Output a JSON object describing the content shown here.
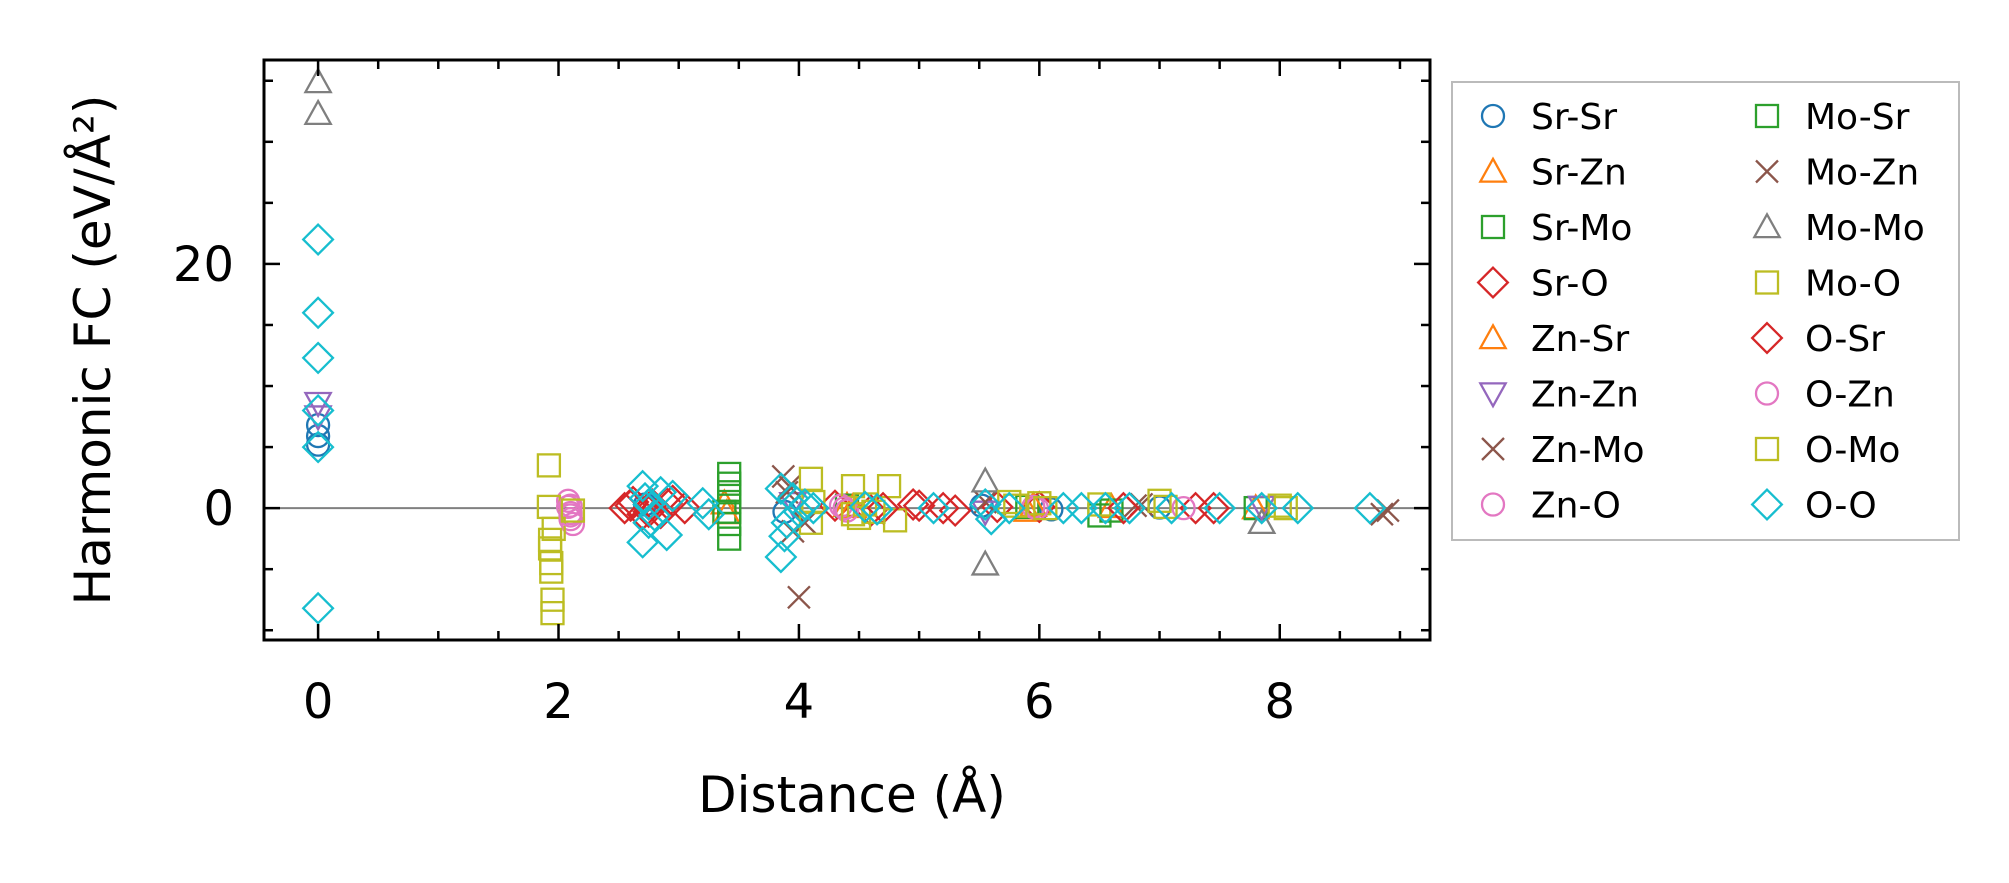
{
  "chart_data": {
    "type": "scatter",
    "xlabel": "Distance (Å)",
    "ylabel": "Harmonic FC (eV/Å²)",
    "xlim": [
      -0.45,
      9.25
    ],
    "ylim": [
      -10.8,
      36.7
    ],
    "xticks": [
      0,
      2,
      4,
      6,
      8
    ],
    "yticks": [
      0,
      20
    ],
    "grid": false,
    "zero_line": true,
    "legend_position": "outside-right",
    "colors": {
      "blue": "#1f77b4",
      "orange": "#ff7f0e",
      "green": "#2ca02c",
      "red": "#d62728",
      "purple": "#9467bd",
      "brown": "#8c564b",
      "pink": "#e377c2",
      "gray": "#7f7f7f",
      "olive": "#bcbd22",
      "cyan": "#17becf"
    },
    "series": [
      {
        "name": "Sr-Sr",
        "marker": "circle",
        "color": "#1f77b4",
        "x": [
          0,
          0,
          0,
          2.72,
          3.88,
          5.52,
          6.1,
          7.0
        ],
        "y": [
          6.8,
          5.9,
          5.2,
          0.3,
          -0.3,
          0.2,
          -0.1,
          0.05
        ]
      },
      {
        "name": "Sr-Zn",
        "marker": "triangle-up",
        "color": "#ff7f0e",
        "x": [
          3.38,
          4.4,
          5.9,
          6.6,
          7.8
        ],
        "y": [
          0.4,
          0.2,
          -0.2,
          0.1,
          0
        ]
      },
      {
        "name": "Sr-Mo",
        "marker": "square",
        "color": "#2ca02c",
        "x": [
          3.38,
          4.4,
          5.9,
          6.6,
          7.8
        ],
        "y": [
          -0.3,
          0.2,
          0.1,
          -0.2,
          0
        ]
      },
      {
        "name": "Sr-O",
        "marker": "diamond",
        "color": "#d62728",
        "x": [
          2.55,
          2.62,
          2.7,
          2.78,
          2.85,
          2.95,
          3.05,
          4.3,
          4.6,
          4.95,
          5.2,
          5.65,
          6.0,
          7.3
        ],
        "y": [
          0,
          0.5,
          -0.5,
          0.3,
          -0.4,
          0.6,
          0,
          0.2,
          -0.2,
          0.3,
          0,
          0.1,
          0.1,
          0
        ]
      },
      {
        "name": "Zn-Sr",
        "marker": "triangle-up",
        "color": "#ff7f0e",
        "x": [
          3.4,
          4.45,
          5.95
        ],
        "y": [
          -0.4,
          0.1,
          0.2
        ]
      },
      {
        "name": "Zn-Zn",
        "marker": "triangle-down",
        "color": "#9467bd",
        "x": [
          0,
          0,
          3.95,
          5.55,
          7.85
        ],
        "y": [
          8.6,
          7.5,
          0.4,
          -0.3,
          0.1
        ]
      },
      {
        "name": "Zn-Mo",
        "marker": "x",
        "color": "#8c564b",
        "x": [
          3.87,
          3.92,
          3.95,
          4.0,
          5.55,
          6.85,
          8.85
        ],
        "y": [
          2.6,
          1.8,
          -1.9,
          -7.3,
          0.5,
          0.3,
          -0.5
        ]
      },
      {
        "name": "Zn-O",
        "marker": "circle",
        "color": "#e377c2",
        "x": [
          2.08,
          2.08,
          2.1,
          2.1,
          2.12,
          4.35,
          4.4,
          5.95,
          7.2
        ],
        "y": [
          0.6,
          0.1,
          -0.4,
          -0.9,
          -1.3,
          0.2,
          -0.2,
          0.1,
          0
        ]
      },
      {
        "name": "Mo-Sr",
        "marker": "square",
        "color": "#2ca02c",
        "x": [
          3.42,
          3.42,
          3.42,
          3.42,
          3.42,
          3.42,
          3.42,
          6.5
        ],
        "y": [
          2.8,
          2.0,
          1.3,
          0.5,
          -0.3,
          -1.3,
          -2.5,
          -0.6
        ]
      },
      {
        "name": "Mo-Zn",
        "marker": "x",
        "color": "#8c564b",
        "x": [
          3.9,
          4.05,
          6.8,
          8.9
        ],
        "y": [
          1.3,
          -1.2,
          0.2,
          -0.2
        ]
      },
      {
        "name": "Mo-Mo",
        "marker": "triangle-up",
        "color": "#7f7f7f",
        "x": [
          0,
          0,
          5.55,
          5.55,
          7.85
        ],
        "y": [
          34.9,
          32.3,
          2.2,
          -4.6,
          -1.2
        ]
      },
      {
        "name": "Mo-O",
        "marker": "square",
        "color": "#bcbd22",
        "x": [
          1.92,
          1.92,
          1.93,
          1.93,
          1.94,
          1.94,
          1.95,
          1.95,
          1.96,
          4.1,
          4.1,
          4.45,
          4.5,
          4.75,
          4.8,
          5.75,
          6.0,
          6.5,
          7.0,
          8.0
        ],
        "y": [
          3.5,
          0.1,
          -2.6,
          -3.3,
          -4.5,
          -5.2,
          -7.5,
          -8.6,
          -1.7,
          2.4,
          -1.2,
          1.8,
          -0.8,
          1.8,
          -1.0,
          0.5,
          0.4,
          0.3,
          0.6,
          0.2
        ]
      },
      {
        "name": "O-Sr",
        "marker": "diamond",
        "color": "#d62728",
        "x": [
          2.6,
          2.75,
          2.9,
          4.7,
          5.0,
          5.3,
          6.7,
          7.45
        ],
        "y": [
          0.2,
          -0.3,
          0.4,
          0,
          0.2,
          -0.2,
          0,
          0
        ]
      },
      {
        "name": "O-Zn",
        "marker": "circle",
        "color": "#e377c2",
        "x": [
          2.1,
          2.1,
          4.38,
          5.98
        ],
        "y": [
          0.2,
          -0.6,
          0,
          0
        ]
      },
      {
        "name": "O-Mo",
        "marker": "square",
        "color": "#bcbd22",
        "x": [
          2.12,
          4.12,
          4.45,
          4.55,
          4.62,
          5.8,
          6.05,
          7.05,
          8.05
        ],
        "y": [
          -0.2,
          0.5,
          -0.5,
          0.3,
          -0.3,
          0.2,
          0,
          0.1,
          0
        ]
      },
      {
        "name": "O-O",
        "marker": "diamond",
        "color": "#17becf",
        "x": [
          0,
          0,
          0,
          0,
          0,
          0,
          2.7,
          2.7,
          2.72,
          2.75,
          2.75,
          2.8,
          2.85,
          2.9,
          2.95,
          3.2,
          3.25,
          3.85,
          3.85,
          3.88,
          3.9,
          3.95,
          4.0,
          4.05,
          4.12,
          4.55,
          4.65,
          5.12,
          5.55,
          5.6,
          5.75,
          6.2,
          6.35,
          6.55,
          6.75,
          7.1,
          7.5,
          7.85,
          8.15,
          8.75
        ],
        "y": [
          22.0,
          16.0,
          12.3,
          8.0,
          5.0,
          -8.2,
          1.8,
          -2.8,
          0.8,
          -1.2,
          0.3,
          -0.6,
          1.3,
          -2.2,
          1.0,
          0.4,
          -0.5,
          1.6,
          -4.0,
          -2.3,
          -1.2,
          0.8,
          -0.3,
          0.3,
          0,
          0.1,
          -0.1,
          0,
          0.3,
          -0.9,
          0,
          0,
          0,
          0,
          0,
          0,
          0,
          0,
          0,
          0
        ]
      }
    ]
  }
}
